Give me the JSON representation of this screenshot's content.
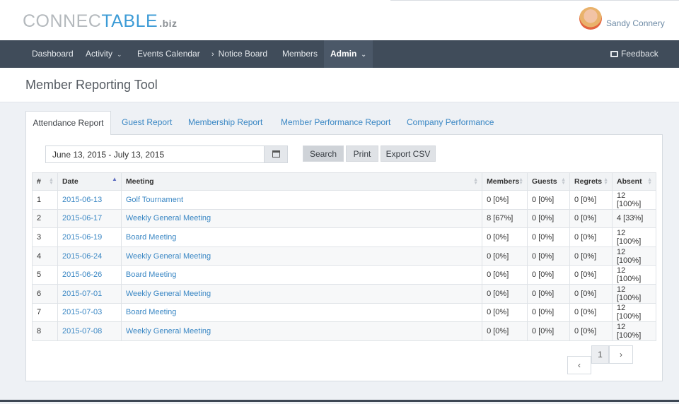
{
  "brand": {
    "logo_part1": "CONNEC",
    "logo_part2": "TABLE",
    "logo_suffix": ".biz"
  },
  "user": {
    "name": "Sandy Connery"
  },
  "nav": {
    "dashboard": "Dashboard",
    "activity": "Activity",
    "events": "Events Calendar",
    "notice": "Notice Board",
    "members": "Members",
    "admin": "Admin",
    "feedback": "Feedback"
  },
  "page": {
    "title": "Member Reporting Tool"
  },
  "tabs": [
    {
      "label": "Attendance Report"
    },
    {
      "label": "Guest Report"
    },
    {
      "label": "Membership Report"
    },
    {
      "label": "Member Performance Report"
    },
    {
      "label": "Company Performance"
    }
  ],
  "filters": {
    "date_range": "June 13, 2015 - July 13, 2015"
  },
  "buttons": {
    "search": "Search",
    "print": "Print",
    "export": "Export CSV"
  },
  "table": {
    "headers": [
      "#",
      "Date",
      "Meeting",
      "Members",
      "Guests",
      "Regrets",
      "Absent"
    ],
    "rows": [
      [
        "1",
        "2015-06-13",
        "Golf Tournament",
        "0 [0%]",
        "0 [0%]",
        "0 [0%]",
        "12 [100%]"
      ],
      [
        "2",
        "2015-06-17",
        "Weekly General Meeting",
        "8 [67%]",
        "0 [0%]",
        "0 [0%]",
        "4 [33%]"
      ],
      [
        "3",
        "2015-06-19",
        "Board Meeting",
        "0 [0%]",
        "0 [0%]",
        "0 [0%]",
        "12 [100%]"
      ],
      [
        "4",
        "2015-06-24",
        "Weekly General Meeting",
        "0 [0%]",
        "0 [0%]",
        "0 [0%]",
        "12 [100%]"
      ],
      [
        "5",
        "2015-06-26",
        "Board Meeting",
        "0 [0%]",
        "0 [0%]",
        "0 [0%]",
        "12 [100%]"
      ],
      [
        "6",
        "2015-07-01",
        "Weekly General Meeting",
        "0 [0%]",
        "0 [0%]",
        "0 [0%]",
        "12 [100%]"
      ],
      [
        "7",
        "2015-07-03",
        "Board Meeting",
        "0 [0%]",
        "0 [0%]",
        "0 [0%]",
        "12 [100%]"
      ],
      [
        "8",
        "2015-07-08",
        "Weekly General Meeting",
        "0 [0%]",
        "0 [0%]",
        "0 [0%]",
        "12 [100%]"
      ]
    ]
  },
  "pagination": {
    "current": "1",
    "prev": "‹",
    "next": "›"
  },
  "colors": {
    "nav_bg": "#404c5a",
    "link": "#3a87c4",
    "accent_blue": "#3c9bd6"
  }
}
